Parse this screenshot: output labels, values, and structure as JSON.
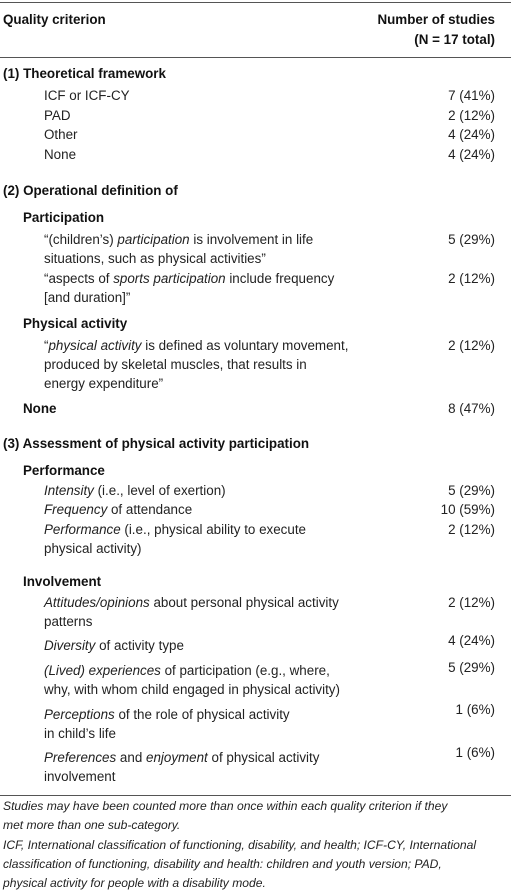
{
  "header": {
    "col1": "Quality criterion",
    "col2_line1": "Number of studies",
    "col2_line2": "(N = 17 total)"
  },
  "sections": {
    "s1": {
      "title": "(1) Theoretical framework",
      "rows": [
        {
          "label": "ICF or ICF-CY",
          "value": "7 (41%)"
        },
        {
          "label": "PAD",
          "value": "2 (12%)"
        },
        {
          "label": "Other",
          "value": "4 (24%)"
        },
        {
          "label": "None",
          "value": "4 (24%)"
        }
      ]
    },
    "s2": {
      "title": "(2) Operational definition of",
      "participation": {
        "title": "Participation",
        "def1": {
          "q": "“(children’s) ",
          "em": "participation",
          "rest": " is involvement in life",
          "line2": "situations, such as physical activities”",
          "value": "5 (29%)"
        },
        "def2": {
          "q": "“aspects of ",
          "em": "sports participation",
          "rest": " include frequency",
          "line2": "[and duration]”",
          "value": "2 (12%)"
        }
      },
      "physical_activity": {
        "title": "Physical activity",
        "def1": {
          "q": "“",
          "em": "physical activity",
          "rest": " is defined as voluntary movement,",
          "line2": "produced by skeletal muscles, that results in",
          "line3": "energy expenditure”",
          "value": "2 (12%)"
        }
      },
      "none": {
        "title": "None",
        "value": "8 (47%)"
      }
    },
    "s3": {
      "title": "(3) Assessment of physical activity participation",
      "performance": {
        "title": "Performance",
        "rows": [
          {
            "em": "Intensity",
            "rest": " (i.e., level of exertion)",
            "value": "5 (29%)"
          },
          {
            "em": "Frequency",
            "rest": " of attendance",
            "value": "10 (59%)"
          },
          {
            "em": "Performance",
            "rest": " (i.e., physical ability to execute",
            "line2": "physical activity)",
            "value": "2 (12%)"
          }
        ]
      },
      "involvement": {
        "title": "Involvement",
        "rows": [
          {
            "em": "Attitudes/opinions",
            "rest": " about personal physical activity",
            "line2": "patterns",
            "value": "2 (12%)"
          },
          {
            "em": "Diversity",
            "rest": " of activity type",
            "value": "4 (24%)"
          },
          {
            "em": "(Lived) experiences",
            "rest": " of participation (e.g., where,",
            "line2": "why, with whom child engaged in physical activity)",
            "value": "5 (29%)"
          },
          {
            "em": "Perceptions",
            "rest": " of the role of physical activity",
            "line2": "in child’s life",
            "value": "1 (6%)"
          },
          {
            "em": "Preferences",
            "rest": " and ",
            "em2": "enjoyment",
            "rest2": " of physical activity",
            "line2": "involvement",
            "value": "1 (6%)"
          }
        ]
      }
    }
  },
  "footnote": {
    "l1": "Studies may have been counted more than once within each quality criterion if they",
    "l2": "met more than one sub-category.",
    "l3": "ICF, International classification of functioning, disability, and health; ICF-CY, International",
    "l4": "classification of functioning, disability and health: children and youth version; PAD,",
    "l5": "physical activity for people with a disability mode."
  }
}
